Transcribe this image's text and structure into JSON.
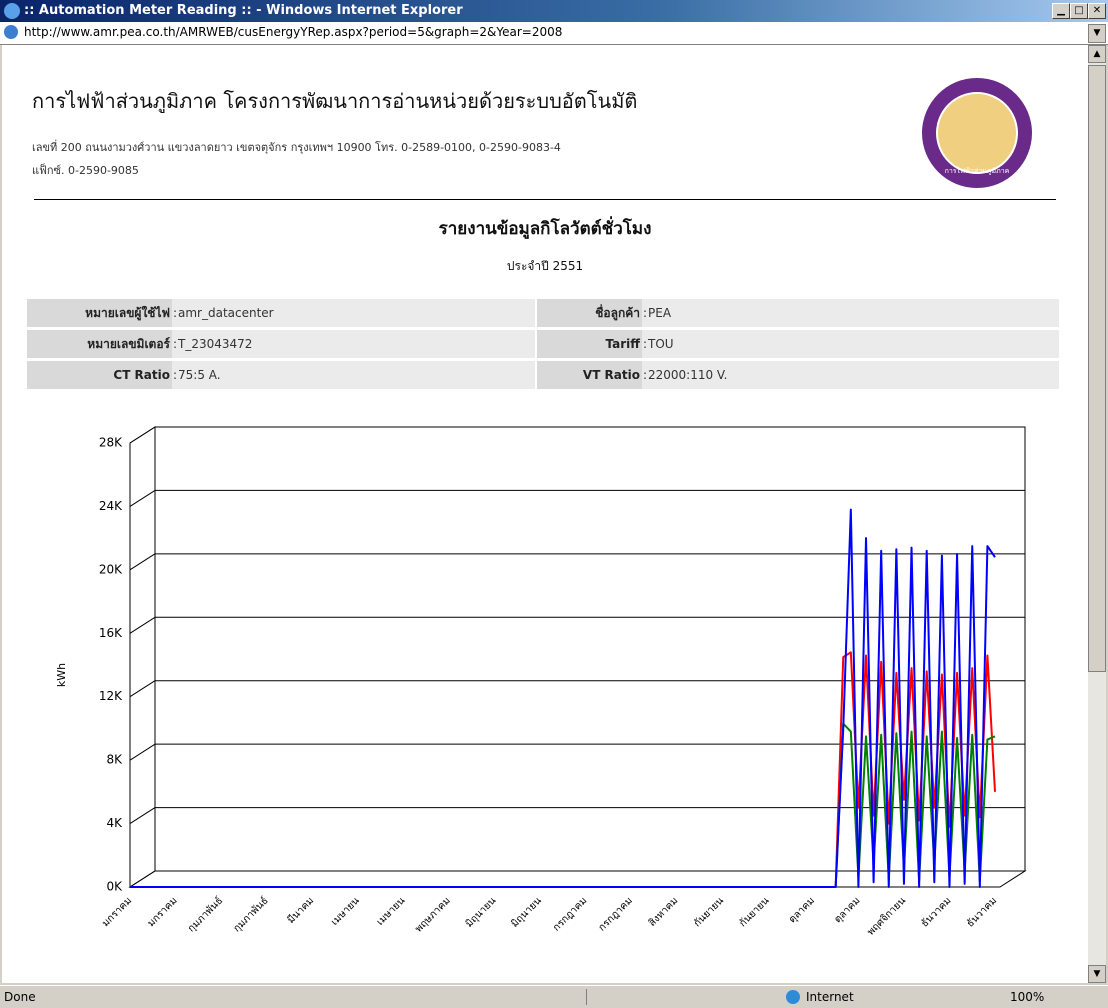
{
  "window": {
    "title": ":: Automation Meter Reading :: - Windows Internet Explorer",
    "url": "http://www.amr.pea.co.th/AMRWEB/cusEnergyYRep.aspx?period=5&graph=2&Year=2008"
  },
  "header": {
    "title": "การไฟฟ้าส่วนภูมิภาค โครงการพัฒนาการอ่านหน่วยด้วยระบบอัตโนมัติ",
    "address": "เลขที่ 200 ถนนงามวงศ์วาน แขวงลาดยาว เขตจตุจักร กรุงเทพฯ 10900 โทร. 0-2589-0100, 0-2590-9083-4",
    "fax": "แฟ็กซ์. 0-2590-9085",
    "logo_text": "การไฟฟ้าส่วนภูมิภาค"
  },
  "report": {
    "title": "รายงานข้อมูลกิโลวัตต์ชั่วโมง",
    "subtitle": "ประจำปี 2551"
  },
  "info": {
    "separator": ":",
    "rows": [
      [
        {
          "label": "หมายเลขผู้ใช้ไฟ",
          "value": "amr_datacenter"
        },
        {
          "label": "ชื่อลูกค้า",
          "value": "PEA"
        }
      ],
      [
        {
          "label": "หมายเลขมิเตอร์",
          "value": "T_23043472"
        },
        {
          "label": "Tariff",
          "value": "TOU"
        }
      ],
      [
        {
          "label": "CT Ratio",
          "value": "75:5 A."
        },
        {
          "label": "VT Ratio",
          "value": "22000:110 V."
        }
      ]
    ]
  },
  "chart_data": {
    "type": "line",
    "ylabel": "kWh",
    "categories": [
      "มกราคม",
      null,
      null,
      null,
      null,
      null,
      "มกราคม",
      null,
      null,
      null,
      null,
      null,
      "กุมภาพันธ์",
      null,
      null,
      null,
      null,
      null,
      "กุมภาพันธ์",
      null,
      null,
      null,
      null,
      null,
      "มีนาคม",
      null,
      null,
      null,
      null,
      null,
      "เมษายน",
      null,
      null,
      null,
      null,
      null,
      "เมษายน",
      null,
      null,
      null,
      null,
      null,
      "พฤษภาคม",
      null,
      null,
      null,
      null,
      null,
      "มิถุนายน",
      null,
      null,
      null,
      null,
      null,
      "มิถุนายน",
      null,
      null,
      null,
      null,
      null,
      "กรกฎาคม",
      null,
      null,
      null,
      null,
      null,
      "กรกฎาคม",
      null,
      null,
      null,
      null,
      null,
      "สิงหาคม",
      null,
      null,
      null,
      null,
      null,
      "กันยายน",
      null,
      null,
      null,
      null,
      null,
      "กันยายน",
      null,
      null,
      null,
      null,
      null,
      "ตุลาคม",
      null,
      null,
      null,
      null,
      null,
      "ตุลาคม",
      null,
      null,
      null,
      null,
      null,
      "พฤศจิกายน",
      null,
      null,
      null,
      null,
      null,
      "ธันวาคม",
      null,
      null,
      null,
      null,
      null,
      "ธันวาคม"
    ],
    "series": [
      {
        "color": "#ff0000",
        "values": [
          0,
          0,
          0,
          0,
          0,
          0,
          0,
          0,
          0,
          0,
          0,
          0,
          0,
          0,
          0,
          0,
          0,
          0,
          0,
          0,
          0,
          0,
          0,
          0,
          0,
          0,
          0,
          0,
          0,
          0,
          0,
          0,
          0,
          0,
          0,
          0,
          0,
          0,
          0,
          0,
          0,
          0,
          0,
          0,
          0,
          0,
          0,
          0,
          0,
          0,
          0,
          0,
          0,
          0,
          0,
          0,
          0,
          0,
          0,
          0,
          0,
          0,
          0,
          0,
          0,
          0,
          0,
          0,
          0,
          0,
          0,
          0,
          0,
          0,
          0,
          0,
          0,
          0,
          0,
          0,
          0,
          0,
          0,
          0,
          0,
          0,
          0,
          0,
          0,
          0,
          0,
          0,
          0,
          0,
          14500,
          14800,
          5000,
          14600,
          4500,
          14200,
          4000,
          13500,
          5500,
          13800,
          4200,
          13600,
          5000,
          13400,
          3800,
          13500,
          4500,
          13800,
          4400,
          14600,
          6000
        ]
      },
      {
        "color": "#008000",
        "values": [
          0,
          0,
          0,
          0,
          0,
          0,
          0,
          0,
          0,
          0,
          0,
          0,
          0,
          0,
          0,
          0,
          0,
          0,
          0,
          0,
          0,
          0,
          0,
          0,
          0,
          0,
          0,
          0,
          0,
          0,
          0,
          0,
          0,
          0,
          0,
          0,
          0,
          0,
          0,
          0,
          0,
          0,
          0,
          0,
          0,
          0,
          0,
          0,
          0,
          0,
          0,
          0,
          0,
          0,
          0,
          0,
          0,
          0,
          0,
          0,
          0,
          0,
          0,
          0,
          0,
          0,
          0,
          0,
          0,
          0,
          0,
          0,
          0,
          0,
          0,
          0,
          0,
          0,
          0,
          0,
          0,
          0,
          0,
          0,
          0,
          0,
          0,
          0,
          0,
          0,
          0,
          0,
          0,
          0,
          10300,
          9800,
          600,
          9500,
          1500,
          9600,
          500,
          9700,
          1200,
          9800,
          400,
          9500,
          1500,
          9800,
          600,
          9400,
          1000,
          9600,
          400,
          9300,
          9500
        ]
      },
      {
        "color": "#0000ff",
        "values": [
          0,
          0,
          0,
          0,
          0,
          0,
          0,
          0,
          0,
          0,
          0,
          0,
          0,
          0,
          0,
          0,
          0,
          0,
          0,
          0,
          0,
          0,
          0,
          0,
          0,
          0,
          0,
          0,
          0,
          0,
          0,
          0,
          0,
          0,
          0,
          0,
          0,
          0,
          0,
          0,
          0,
          0,
          0,
          0,
          0,
          0,
          0,
          0,
          0,
          0,
          0,
          0,
          0,
          0,
          0,
          0,
          0,
          0,
          0,
          0,
          0,
          0,
          0,
          0,
          0,
          0,
          0,
          0,
          0,
          0,
          0,
          0,
          0,
          0,
          0,
          0,
          0,
          0,
          0,
          0,
          0,
          0,
          0,
          0,
          0,
          0,
          0,
          0,
          0,
          0,
          0,
          0,
          0,
          0,
          10000,
          23800,
          0,
          22000,
          300,
          21200,
          0,
          21300,
          200,
          21400,
          0,
          21200,
          300,
          20900,
          0,
          21000,
          200,
          21500,
          0,
          21500,
          20800
        ]
      }
    ],
    "ylim": [
      0,
      28000
    ],
    "yticks": [
      {
        "value": 0,
        "label": "0K"
      },
      {
        "value": 4000,
        "label": "4K"
      },
      {
        "value": 8000,
        "label": "8K"
      },
      {
        "value": 12000,
        "label": "12K"
      },
      {
        "value": 16000,
        "label": "16K"
      },
      {
        "value": 20000,
        "label": "20K"
      },
      {
        "value": 24000,
        "label": "24K"
      },
      {
        "value": 28000,
        "label": "28K"
      }
    ],
    "grid": true
  },
  "status": {
    "text": "Done",
    "zone": "Internet",
    "zoom": "100%"
  }
}
